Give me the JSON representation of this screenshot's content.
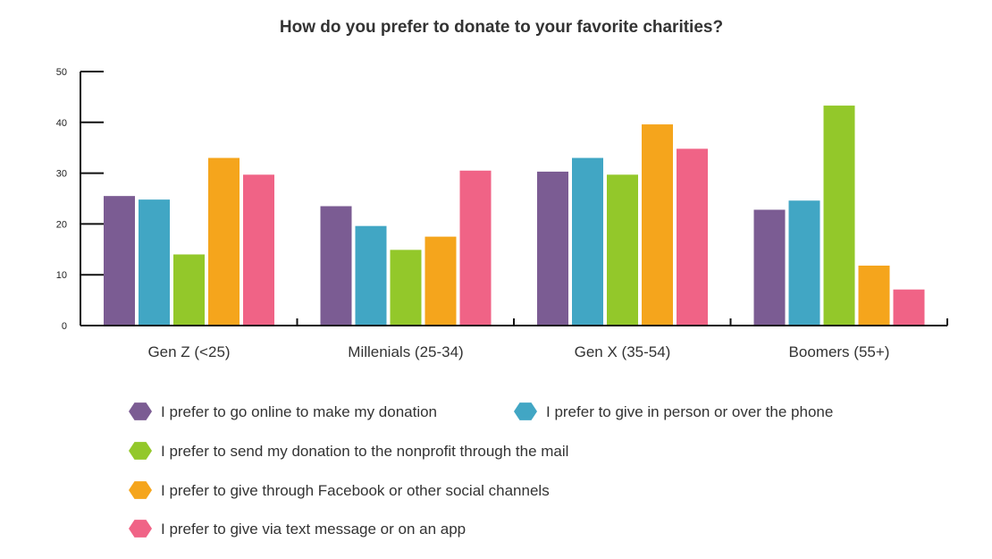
{
  "chart_data": {
    "type": "bar",
    "title": "How do you prefer to donate to your favorite charities?",
    "xlabel": "",
    "ylabel": "",
    "ylim": [
      0,
      50
    ],
    "yticks": [
      0,
      10,
      20,
      30,
      40,
      50
    ],
    "grid": false,
    "legend_position": "bottom",
    "categories": [
      "Gen Z (<25)",
      "Millenials (25-34)",
      "Gen X (35-54)",
      "Boomers (55+)"
    ],
    "series": [
      {
        "name": "I prefer to go online to make my donation",
        "color": "#7B5C93",
        "values": [
          25.5,
          23.5,
          30.3,
          22.8
        ]
      },
      {
        "name": "I prefer to give in person or over the phone",
        "color": "#41A6C4",
        "values": [
          24.8,
          19.6,
          33.0,
          24.6
        ]
      },
      {
        "name": "I prefer to send my donation to the nonprofit through the mail",
        "color": "#93C82A",
        "values": [
          14.0,
          14.9,
          29.7,
          43.3
        ]
      },
      {
        "name": "I prefer to give through Facebook or other social channels",
        "color": "#F5A51C",
        "values": [
          33.0,
          17.5,
          39.6,
          11.8
        ]
      },
      {
        "name": "I prefer to give via text message or on an app",
        "color": "#F06386",
        "values": [
          29.7,
          30.5,
          34.8,
          7.1
        ]
      }
    ]
  }
}
